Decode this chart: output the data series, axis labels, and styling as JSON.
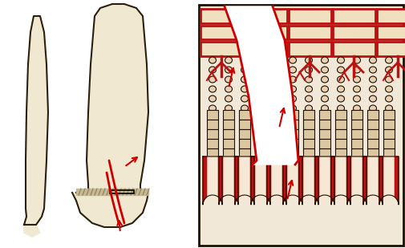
{
  "bg_color": "#ffffff",
  "bone_fill": "#f0e8d0",
  "bone_outline": "#2a2010",
  "bone_cortex": "#e8dcc0",
  "physis_color": "#b0a880",
  "red_color": "#cc0000",
  "dark_red": "#990000",
  "fracture_white": "#ffffff",
  "fig_width": 5.06,
  "fig_height": 3.09,
  "dpi": 100,
  "cell_fill": "#e8d8c0",
  "cell_outline": "#1a1000",
  "vascular_red": "#bb1111"
}
